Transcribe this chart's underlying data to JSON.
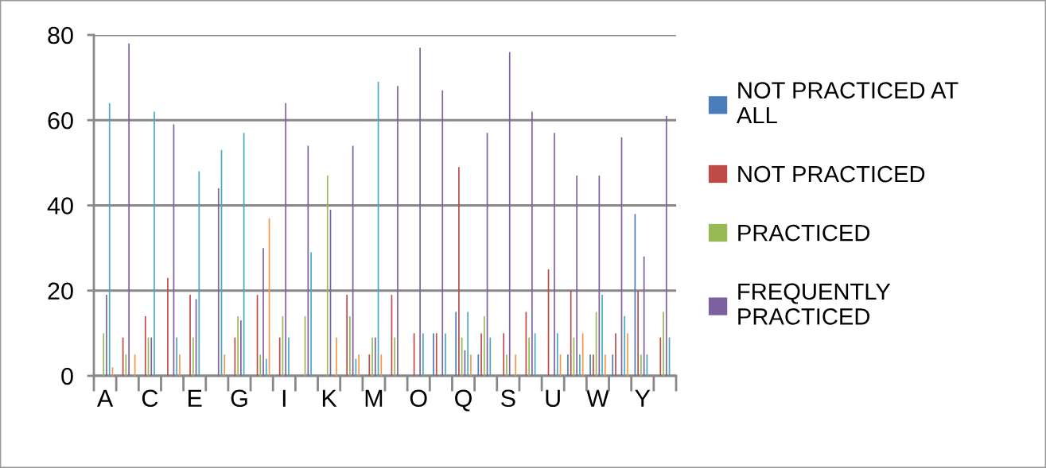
{
  "chart_data": {
    "type": "bar",
    "categories": [
      "A",
      null,
      "C",
      null,
      "E",
      null,
      "G",
      null,
      "I",
      null,
      "K",
      null,
      "M",
      null,
      "O",
      null,
      "Q",
      null,
      "S",
      null,
      "U",
      null,
      "W",
      null,
      "Y",
      null
    ],
    "series": [
      {
        "name": "NOT PRACTICED AT ALL",
        "color": "#4a7ebb",
        "values": [
          0,
          0,
          0,
          0,
          0,
          0,
          0,
          0,
          0,
          0,
          0,
          0,
          0,
          0,
          0,
          10,
          15,
          5,
          0,
          0,
          0,
          5,
          5,
          5,
          38,
          0
        ]
      },
      {
        "name": "NOT PRACTICED",
        "color": "#be4b48",
        "values": [
          0,
          9,
          14,
          23,
          19,
          0,
          9,
          19,
          9,
          0,
          0,
          19,
          5,
          19,
          10,
          10,
          49,
          10,
          10,
          15,
          25,
          20,
          5,
          10,
          20,
          9
        ]
      },
      {
        "name": "PRACTICED",
        "color": "#98b954",
        "values": [
          10,
          5,
          9,
          0,
          9,
          0,
          14,
          5,
          14,
          14,
          47,
          14,
          9,
          9,
          0,
          0,
          9,
          14,
          5,
          9,
          0,
          9,
          15,
          0,
          5,
          15
        ]
      },
      {
        "name": "FREQUENTLY PRACTICED",
        "color": "#7d60a0",
        "values": [
          19,
          78,
          9,
          59,
          18,
          44,
          13,
          30,
          64,
          54,
          39,
          54,
          9,
          68,
          77,
          67,
          6,
          57,
          76,
          62,
          57,
          47,
          47,
          56,
          28,
          61
        ]
      },
      {
        "color": "#46aac5",
        "values": [
          64,
          0,
          62,
          9,
          48,
          53,
          57,
          4,
          9,
          29,
          0,
          4,
          69,
          0,
          10,
          10,
          15,
          9,
          0,
          10,
          10,
          5,
          19,
          14,
          5,
          9
        ]
      },
      {
        "color": "#f79646",
        "values": [
          2,
          5,
          0,
          5,
          0,
          5,
          0,
          37,
          0,
          0,
          9,
          5,
          5,
          0,
          0,
          0,
          5,
          0,
          5,
          0,
          5,
          10,
          5,
          10,
          0,
          0
        ]
      }
    ],
    "ylim": [
      0,
      80
    ],
    "yticks": [
      0,
      20,
      40,
      60,
      80
    ],
    "grid": "y",
    "legend": "right"
  }
}
